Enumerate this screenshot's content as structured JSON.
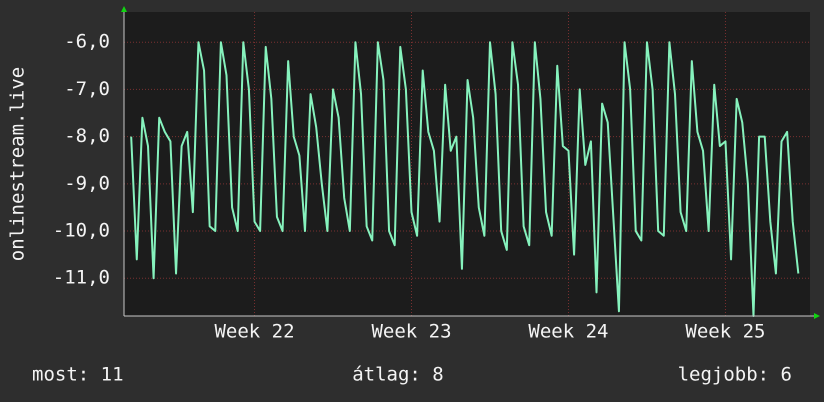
{
  "chart_data": {
    "type": "line",
    "ylabel": "onlinestream.live",
    "x": [
      -2,
      -1.75,
      -1.5,
      -1.25,
      -1,
      -0.75,
      -0.5,
      -0.25,
      0,
      0.25,
      0.5,
      0.75,
      1,
      1.25,
      1.5,
      1.75,
      2,
      2.25,
      2.5,
      2.75,
      3,
      3.25,
      3.5,
      3.75,
      4,
      4.25,
      4.5,
      4.75,
      5,
      5.25,
      5.5,
      5.75,
      6,
      6.25,
      6.5,
      6.75,
      7,
      7.25,
      7.5,
      7.75,
      8,
      8.25,
      8.5,
      8.75,
      9,
      9.25,
      9.5,
      9.75,
      10,
      10.25,
      10.5,
      10.75,
      11,
      11.25,
      11.5,
      11.75,
      12,
      12.25,
      12.5,
      12.75,
      13,
      13.25,
      13.5,
      13.75,
      14,
      14.25,
      14.5,
      14.75,
      15,
      15.25,
      15.5,
      15.75,
      16,
      16.25,
      16.5,
      16.75,
      17,
      17.25,
      17.5,
      17.75,
      18,
      18.25,
      18.5,
      18.75,
      19,
      19.25,
      19.5,
      19.75,
      20,
      20.25,
      20.5,
      20.75,
      21,
      21.25,
      21.5,
      21.75,
      22,
      22.25,
      22.5,
      22.75,
      23,
      23.25,
      23.5,
      23.75,
      24,
      24.25,
      24.5,
      24.75,
      25,
      25.25,
      25.5,
      25.75,
      26,
      26.25,
      26.5,
      26.75,
      27,
      27.25,
      27.5,
      27.75
    ],
    "series": [
      {
        "color": "#86f2bd",
        "values": [
          -8.0,
          -10.6,
          -7.6,
          -8.2,
          -11.0,
          -7.6,
          -7.9,
          -8.1,
          -10.9,
          -8.2,
          -7.9,
          -9.6,
          -6.0,
          -6.6,
          -9.9,
          -10.0,
          -6.0,
          -6.7,
          -9.5,
          -10.0,
          -6.0,
          -7.0,
          -9.8,
          -10.0,
          -6.1,
          -7.2,
          -9.7,
          -10.0,
          -6.4,
          -8.0,
          -8.4,
          -10.0,
          -7.1,
          -7.8,
          -9.0,
          -10.0,
          -7.0,
          -7.6,
          -9.3,
          -10.0,
          -6.0,
          -7.1,
          -9.9,
          -10.2,
          -6.0,
          -6.8,
          -10.0,
          -10.3,
          -6.1,
          -7.0,
          -9.6,
          -10.1,
          -6.6,
          -7.9,
          -8.3,
          -9.8,
          -6.9,
          -8.3,
          -8.0,
          -10.8,
          -6.8,
          -7.6,
          -9.5,
          -10.1,
          -6.0,
          -7.1,
          -10.0,
          -10.4,
          -6.0,
          -6.9,
          -9.9,
          -10.3,
          -6.0,
          -7.2,
          -9.6,
          -10.1,
          -6.5,
          -8.2,
          -8.3,
          -10.5,
          -7.0,
          -8.6,
          -8.1,
          -11.3,
          -7.3,
          -7.7,
          -9.7,
          -11.7,
          -6.0,
          -7.0,
          -10.0,
          -10.2,
          -6.0,
          -7.0,
          -10.0,
          -10.1,
          -6.0,
          -7.1,
          -9.6,
          -10.0,
          -6.4,
          -7.9,
          -8.3,
          -10.0,
          -6.9,
          -8.2,
          -8.1,
          -10.6,
          -7.2,
          -7.7,
          -9.0,
          -11.8,
          -8.0,
          -8.0,
          -9.8,
          -10.9,
          -8.1,
          -7.9,
          -9.8,
          -10.9
        ]
      }
    ],
    "xlim": [
      -2.32,
      28.27
    ],
    "xticks": [
      {
        "value": 3.5,
        "label": "Week 22"
      },
      {
        "value": 10.5,
        "label": "Week 23"
      },
      {
        "value": 17.5,
        "label": "Week 24"
      },
      {
        "value": 24.5,
        "label": "Week 25"
      }
    ],
    "ylim": [
      -11.8,
      -5.36
    ],
    "yticks": [
      {
        "value": -6,
        "label": "-6,0"
      },
      {
        "value": -7,
        "label": "-7,0"
      },
      {
        "value": -8,
        "label": "-8,0"
      },
      {
        "value": -9,
        "label": "-9,0"
      },
      {
        "value": -10,
        "label": "-10,0"
      },
      {
        "value": -11,
        "label": "-11,0"
      }
    ],
    "grid": true,
    "footer": {
      "current": "most: 11",
      "average": "átlag: 8",
      "best": "legjobb: 6"
    }
  }
}
